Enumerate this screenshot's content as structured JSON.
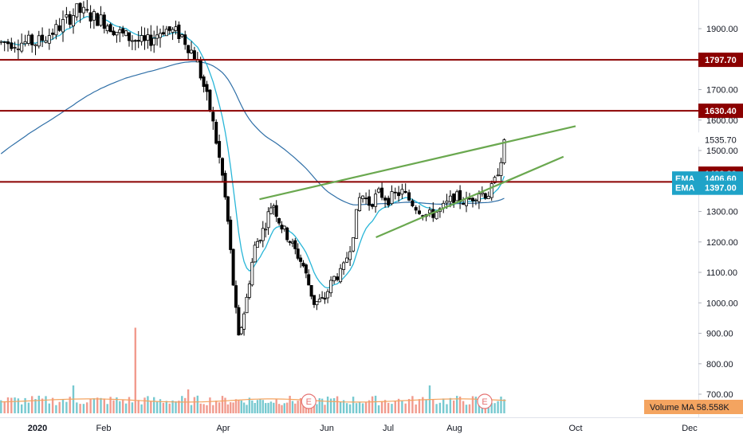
{
  "colors": {
    "background": "#ffffff",
    "bull": "#ffffff",
    "bear": "#000000",
    "candle_outline": "#000000",
    "ema_fast": "#29b6d8",
    "ema_slow": "#2f6fa7",
    "resistance": "#8b0000",
    "trendline": "#6aa84f",
    "volume_up": "#5fc0c8",
    "volume_down": "#ef8a7a",
    "volume_ma": "#f4a460",
    "earnings": "#e57373"
  },
  "price_axis": {
    "ticks": [
      "1900.00",
      "1800.00",
      "1700.00",
      "1600.00",
      "1500.00",
      "1400.00",
      "1300.00",
      "1200.00",
      "1100.00",
      "1000.00",
      "900.00",
      "800.00",
      "700.00"
    ],
    "tick_values": [
      1900,
      1800,
      1700,
      1600,
      1500,
      1400,
      1300,
      1200,
      1100,
      1000,
      900,
      800,
      700
    ]
  },
  "time_axis": {
    "labels": [
      "2020",
      "Feb",
      "Apr",
      "Jun",
      "Jul",
      "Aug",
      "Oct",
      "Dec"
    ]
  },
  "price_tags": [
    {
      "label": "",
      "value": "1797.70",
      "kind": "resistance"
    },
    {
      "label": "",
      "value": "1630.40",
      "kind": "resistance"
    },
    {
      "label": "",
      "value": "1535.70",
      "kind": "last-plain"
    },
    {
      "label": "",
      "value": "1423.80",
      "kind": "last"
    },
    {
      "label": "EMA",
      "value": "1406.60",
      "kind": "ema"
    },
    {
      "label": "EMA",
      "value": "1397.00",
      "kind": "ema"
    }
  ],
  "volume_ma_tag": {
    "label": "Volume MA",
    "value": "58.558K"
  },
  "earnings_marker": "E",
  "chart_data": {
    "type": "candlestick",
    "title": "",
    "ylim": [
      680,
      1960
    ],
    "resistance_levels": [
      1797.7,
      1630.4,
      1397.0
    ],
    "trendlines": [
      {
        "name": "upper",
        "from": {
          "month": 3.7,
          "price": 1340
        },
        "to": {
          "month": 9.0,
          "price": 1580
        }
      },
      {
        "name": "lower",
        "from": {
          "month": 5.8,
          "price": 1215
        },
        "to": {
          "month": 8.8,
          "price": 1480
        }
      }
    ],
    "anchors": [
      {
        "month": 0.0,
        "price": 1855
      },
      {
        "month": 0.3,
        "price": 1900
      },
      {
        "month": 0.6,
        "price": 1960
      },
      {
        "month": 1.0,
        "price": 1925
      },
      {
        "month": 1.3,
        "price": 1880
      },
      {
        "month": 1.7,
        "price": 1850
      },
      {
        "month": 2.0,
        "price": 1900
      },
      {
        "month": 2.3,
        "price": 1880
      },
      {
        "month": 2.55,
        "price": 1800
      },
      {
        "month": 2.8,
        "price": 1620
      },
      {
        "month": 3.0,
        "price": 1400
      },
      {
        "month": 3.1,
        "price": 1250
      },
      {
        "month": 3.2,
        "price": 1050
      },
      {
        "month": 3.3,
        "price": 880
      },
      {
        "month": 3.45,
        "price": 1010
      },
      {
        "month": 3.6,
        "price": 1180
      },
      {
        "month": 3.8,
        "price": 1250
      },
      {
        "month": 3.95,
        "price": 1335
      },
      {
        "month": 4.1,
        "price": 1260
      },
      {
        "month": 4.3,
        "price": 1200
      },
      {
        "month": 4.55,
        "price": 1120
      },
      {
        "month": 4.75,
        "price": 1000
      },
      {
        "month": 4.95,
        "price": 1010
      },
      {
        "month": 5.1,
        "price": 1080
      },
      {
        "month": 5.25,
        "price": 1100
      },
      {
        "month": 5.4,
        "price": 1200
      },
      {
        "month": 5.55,
        "price": 1360
      },
      {
        "month": 5.7,
        "price": 1325
      },
      {
        "month": 5.85,
        "price": 1360
      },
      {
        "month": 6.0,
        "price": 1340
      },
      {
        "month": 6.2,
        "price": 1365
      },
      {
        "month": 6.4,
        "price": 1320
      },
      {
        "month": 6.6,
        "price": 1285
      },
      {
        "month": 6.8,
        "price": 1305
      },
      {
        "month": 7.0,
        "price": 1350
      },
      {
        "month": 7.2,
        "price": 1330
      },
      {
        "month": 7.4,
        "price": 1365
      },
      {
        "month": 7.55,
        "price": 1355
      },
      {
        "month": 7.65,
        "price": 1385
      },
      {
        "month": 7.75,
        "price": 1460
      },
      {
        "month": 7.85,
        "price": 1540
      }
    ],
    "volume_ylim": [
      0,
      250
    ],
    "volume_ma": 58.558,
    "volume_spikes": [
      {
        "month": 1.55,
        "value": 215
      },
      {
        "month": 0.55,
        "value": 70
      },
      {
        "month": 2.4,
        "value": 60
      },
      {
        "month": 6.6,
        "value": 70
      },
      {
        "month": 7.9,
        "value": 55
      }
    ],
    "earnings_months": [
      4.65,
      7.5
    ]
  }
}
